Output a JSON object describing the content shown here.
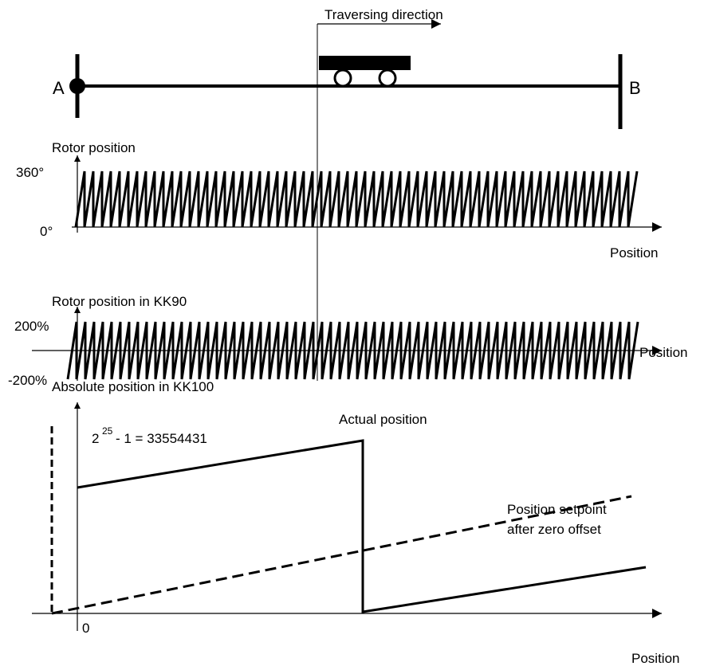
{
  "header": {
    "direction": "Traversing direction",
    "start": "A",
    "end": "B"
  },
  "rotor": {
    "title": "Rotor position",
    "top": "360°",
    "bottom": "0°",
    "axis": "Position"
  },
  "kk90": {
    "title": "Rotor position in KK90",
    "top": "200%",
    "bottom": "-200%",
    "axis": "Position"
  },
  "kk100": {
    "title": "Absolute position in KK100",
    "actual": "Actual position",
    "base": "2",
    "exponent": "25",
    "formula": "- 1 = 33554431",
    "setpoint_1": "Position setpoint",
    "setpoint_2": "after zero offset",
    "origin": "0",
    "axis": "Position"
  }
}
